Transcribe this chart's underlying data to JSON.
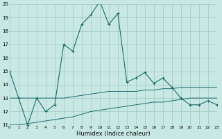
{
  "xlabel": "Humidex (Indice chaleur)",
  "bg_color": "#c8e8e4",
  "grid_color": "#a0c8c4",
  "line_color": "#1a6b6b",
  "x_main": [
    0,
    1,
    2,
    3,
    4,
    5,
    6,
    7,
    8,
    9,
    10,
    11,
    12,
    13,
    14,
    15,
    16,
    17,
    18,
    19,
    20,
    21,
    22,
    23
  ],
  "y_main": [
    15,
    13,
    11,
    13,
    12,
    12.5,
    17,
    16.5,
    18.5,
    19.2,
    20.2,
    18.5,
    19.3,
    14.2,
    14.5,
    14.9,
    14.1,
    14.5,
    13.8,
    13.0,
    12.5,
    12.5,
    12.8,
    12.5
  ],
  "y_low": [
    11.0,
    11.0,
    11.1,
    11.2,
    11.3,
    11.4,
    11.5,
    11.6,
    11.8,
    12.0,
    12.1,
    12.2,
    12.3,
    12.4,
    12.5,
    12.6,
    12.7,
    12.7,
    12.8,
    12.9,
    13.0,
    13.0,
    13.0,
    13.0
  ],
  "y_high": [
    13.0,
    13.0,
    13.0,
    13.0,
    13.0,
    13.0,
    13.0,
    13.1,
    13.2,
    13.3,
    13.4,
    13.5,
    13.5,
    13.5,
    13.5,
    13.6,
    13.6,
    13.7,
    13.7,
    13.8,
    13.8,
    13.8,
    13.8,
    13.8
  ],
  "ylim": [
    11,
    20
  ],
  "xlim": [
    0,
    23
  ],
  "yticks": [
    11,
    12,
    13,
    14,
    15,
    16,
    17,
    18,
    19,
    20
  ],
  "xticks": [
    0,
    1,
    2,
    3,
    4,
    5,
    6,
    7,
    8,
    9,
    10,
    11,
    12,
    13,
    14,
    15,
    16,
    17,
    18,
    19,
    20,
    21,
    22,
    23
  ]
}
